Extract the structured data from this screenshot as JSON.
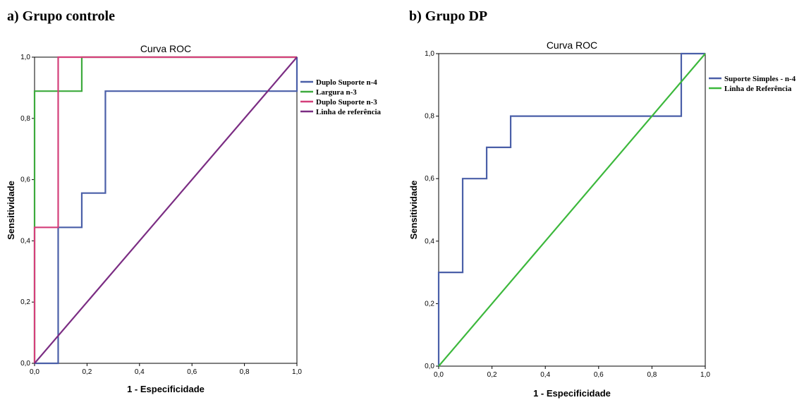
{
  "panels": {
    "a_title": "a) Grupo controle",
    "b_title": "b) Grupo DP"
  },
  "chart_data": [
    {
      "type": "line",
      "title": "Curva ROC",
      "xlabel": "1 - Especificidade",
      "ylabel": "Sensitividade",
      "xlim": [
        0,
        1
      ],
      "ylim": [
        0,
        1
      ],
      "xticks": [
        "0,0",
        "0,2",
        "0,4",
        "0,6",
        "0,8",
        "1,0"
      ],
      "yticks": [
        "0,0",
        "0,2",
        "0,4",
        "0,6",
        "0,8",
        "1,0"
      ],
      "grid": false,
      "legend_position": "right",
      "series": [
        {
          "name": "Duplo Suporte n-4",
          "color": "#4a5fa8",
          "x": [
            0,
            0.09,
            0.09,
            0.18,
            0.18,
            0.27,
            0.27,
            1,
            1
          ],
          "y": [
            0,
            0,
            0.444,
            0.444,
            0.556,
            0.556,
            0.889,
            0.889,
            1
          ]
        },
        {
          "name": "Largura n-3",
          "color": "#3daa3d",
          "x": [
            0,
            0,
            0.18,
            0.18,
            1
          ],
          "y": [
            0,
            0.889,
            0.889,
            1,
            1
          ]
        },
        {
          "name": "Duplo Suporte n-3",
          "color": "#d43f7a",
          "x": [
            0,
            0,
            0.09,
            0.09,
            1
          ],
          "y": [
            0,
            0.444,
            0.444,
            1,
            1
          ]
        },
        {
          "name": "Linha de referência",
          "color": "#7b2d83",
          "x": [
            0,
            1
          ],
          "y": [
            0,
            1
          ]
        }
      ]
    },
    {
      "type": "line",
      "title": "Curva ROC",
      "xlabel": "1 - Especificidade",
      "ylabel": "Sensitividade",
      "xlim": [
        0,
        1
      ],
      "ylim": [
        0,
        1
      ],
      "xticks": [
        "0,0",
        "0,2",
        "0,4",
        "0,6",
        "0,8",
        "1,0"
      ],
      "yticks": [
        "0,0",
        "0,2",
        "0,4",
        "0,6",
        "0,8",
        "1,0"
      ],
      "grid": false,
      "legend_position": "right",
      "series": [
        {
          "name": "Suporte Simples - n-4",
          "color": "#4a5fa8",
          "x": [
            0,
            0,
            0.09,
            0.09,
            0.18,
            0.18,
            0.27,
            0.27,
            0.91,
            0.91,
            1
          ],
          "y": [
            0,
            0.3,
            0.3,
            0.6,
            0.6,
            0.7,
            0.7,
            0.8,
            0.8,
            1,
            1
          ]
        },
        {
          "name": "Linha de Referência",
          "color": "#3cb83c",
          "x": [
            0,
            1
          ],
          "y": [
            0,
            1
          ]
        }
      ]
    }
  ]
}
